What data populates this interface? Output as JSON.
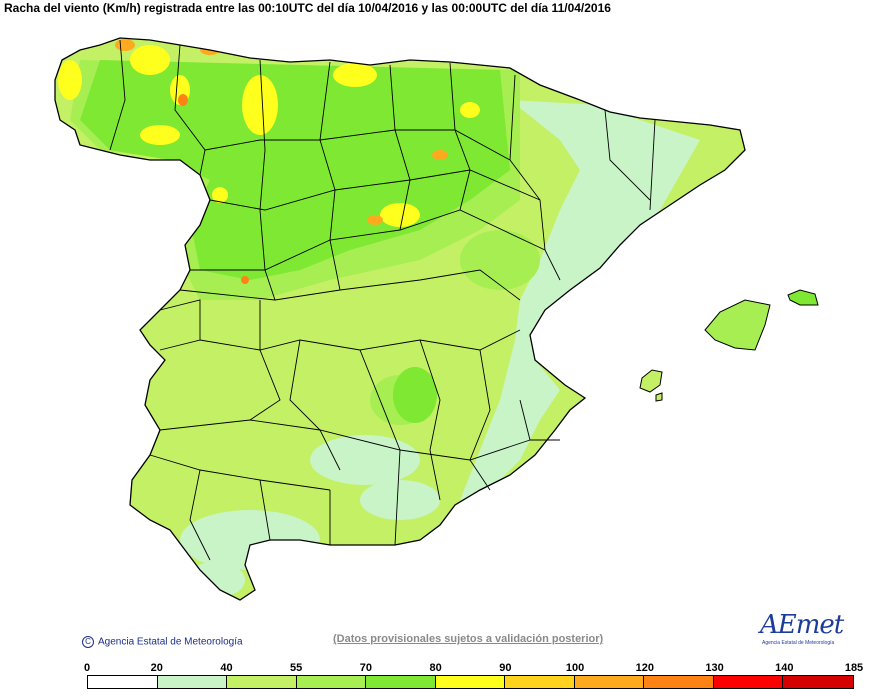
{
  "title": "Racha del viento (Km/h) registrada entre las 00:10UTC del día 10/04/2016 y las 00:00UTC del día 11/04/2016",
  "credit": "Agencia Estatal de Meteorología",
  "disclaimer": "(Datos provisionales sujetos a validación posterior)",
  "logo": {
    "word": "AEmet",
    "sub": "Agencia Estatal de Meteorología"
  },
  "legend": {
    "labels": [
      "0",
      "20",
      "40",
      "55",
      "70",
      "80",
      "90",
      "100",
      "120",
      "130",
      "140",
      "185"
    ],
    "colors": [
      "#ffffff",
      "#c8f4c8",
      "#c4f066",
      "#a6ee52",
      "#7ee832",
      "#ffff1e",
      "#ffd21e",
      "#ffaa1e",
      "#ff8214",
      "#ff0000",
      "#d70000",
      "#a01414"
    ]
  },
  "map_colors": {
    "band_20_40": "#c8f4c8",
    "band_40_55": "#c4f066",
    "band_55_70": "#a6ee52",
    "band_70_80": "#7ee832",
    "band_80_90": "#ffff1e",
    "band_90_100": "#ffd21e",
    "band_100_120": "#ffaa1e",
    "band_120_130": "#ff8214",
    "band_130_140": "#ff0000"
  }
}
